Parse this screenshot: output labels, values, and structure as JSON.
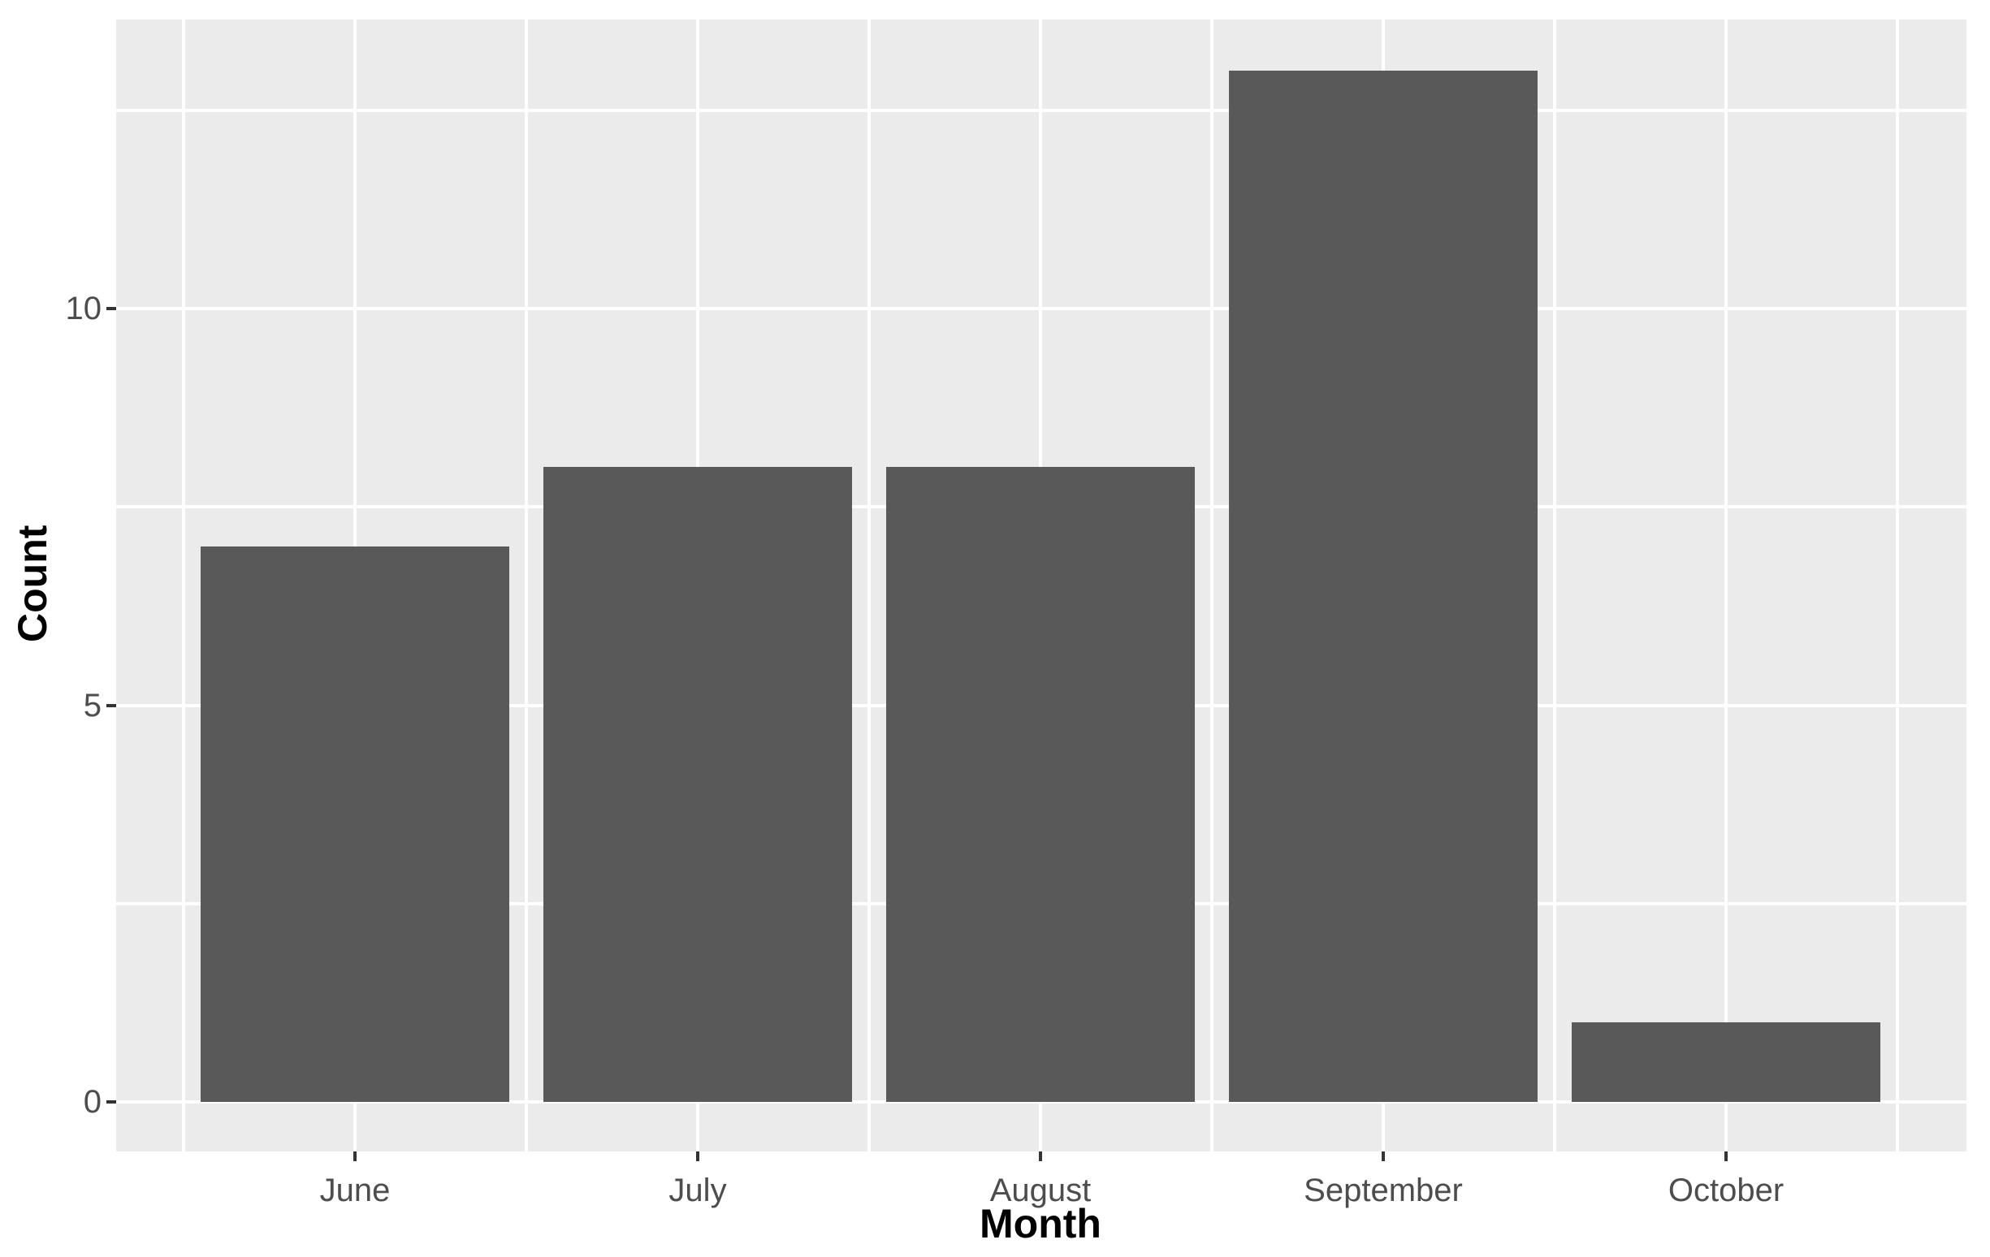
{
  "chart_data": {
    "type": "bar",
    "title": "",
    "xlabel": "Month",
    "ylabel": "Count",
    "categories": [
      "June",
      "July",
      "August",
      "September",
      "October"
    ],
    "values": [
      7,
      8,
      8,
      13,
      1
    ],
    "y_axis": {
      "major_ticks": [
        0,
        5,
        10
      ],
      "minor_gridlines": [
        2.5,
        7.5,
        12.5
      ],
      "range_shown": [
        -0.65,
        13.65
      ]
    },
    "x_axis": {
      "gridlines": "major white line at each category center, minor white line midway between categories"
    },
    "grid": "on",
    "legend": "none",
    "style": "ggplot2 grey theme",
    "colors": {
      "bar_fill": "#595959",
      "panel_background": "#EBEBEB",
      "gridline": "#FFFFFF",
      "axis_tick": "#333333",
      "tick_label": "#4D4D4D",
      "axis_title": "#000000",
      "figure_background": "#FFFFFF"
    }
  }
}
